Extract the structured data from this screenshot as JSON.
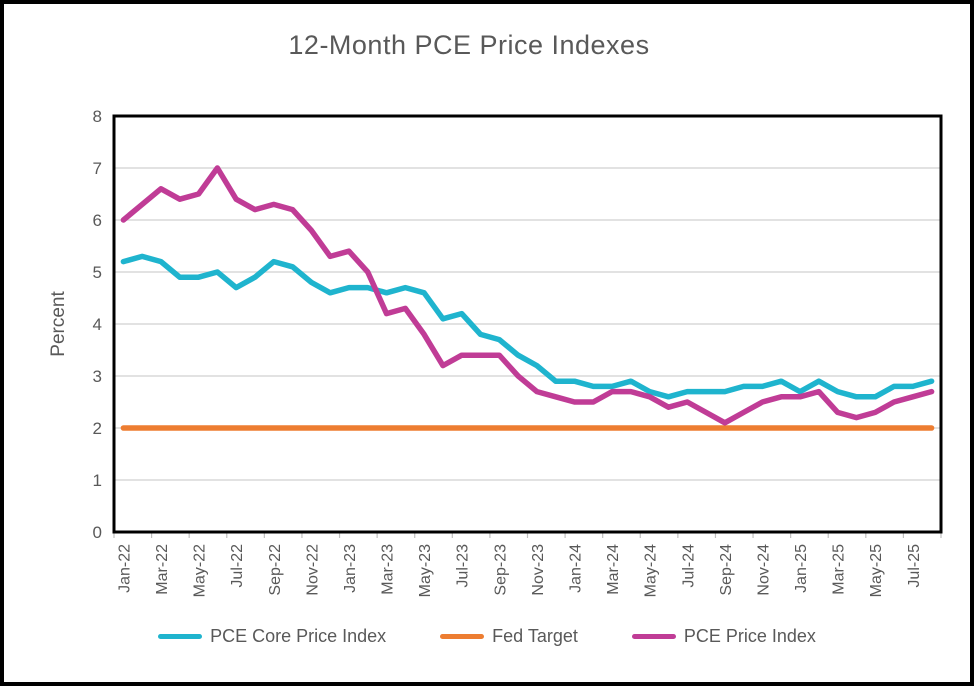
{
  "chart_data": {
    "type": "line",
    "title": "12-Month PCE Price Indexes",
    "ylabel": "Percent",
    "ylim": [
      0,
      8
    ],
    "ytick_step": 1,
    "x_label_every": 2,
    "grid": "horizontal",
    "legend_position": "bottom",
    "text_color": "#595959",
    "gridline_color": "#D9D9D9",
    "tick_color": "#BFBFBF",
    "axis_border_color": "#000000",
    "categories": [
      "Jan-22",
      "Feb-22",
      "Mar-22",
      "Apr-22",
      "May-22",
      "Jun-22",
      "Jul-22",
      "Aug-22",
      "Sep-22",
      "Oct-22",
      "Nov-22",
      "Dec-22",
      "Jan-23",
      "Feb-23",
      "Mar-23",
      "Apr-23",
      "May-23",
      "Jun-23",
      "Jul-23",
      "Aug-23",
      "Sep-23",
      "Oct-23",
      "Nov-23",
      "Dec-23",
      "Jan-24",
      "Feb-24",
      "Mar-24",
      "Apr-24",
      "May-24",
      "Jun-24",
      "Jul-24",
      "Aug-24",
      "Sep-24",
      "Oct-24",
      "Nov-24",
      "Dec-24",
      "Jan-25",
      "Feb-25",
      "Mar-25",
      "Apr-25",
      "May-25",
      "Jun-25",
      "Jul-25",
      "Aug-25"
    ],
    "series": [
      {
        "name": "PCE Core Price Index",
        "color": "#1FB4CE",
        "values": [
          5.2,
          5.3,
          5.2,
          4.9,
          4.9,
          5.0,
          4.7,
          4.9,
          5.2,
          5.1,
          4.8,
          4.6,
          4.7,
          4.7,
          4.6,
          4.7,
          4.6,
          4.1,
          4.2,
          3.8,
          3.7,
          3.4,
          3.2,
          2.9,
          2.9,
          2.8,
          2.8,
          2.9,
          2.7,
          2.6,
          2.7,
          2.7,
          2.7,
          2.8,
          2.8,
          2.9,
          2.7,
          2.9,
          2.7,
          2.6,
          2.6,
          2.8,
          2.8,
          2.9
        ]
      },
      {
        "name": "Fed Target",
        "color": "#ED7D31",
        "values": [
          2.0,
          2.0,
          2.0,
          2.0,
          2.0,
          2.0,
          2.0,
          2.0,
          2.0,
          2.0,
          2.0,
          2.0,
          2.0,
          2.0,
          2.0,
          2.0,
          2.0,
          2.0,
          2.0,
          2.0,
          2.0,
          2.0,
          2.0,
          2.0,
          2.0,
          2.0,
          2.0,
          2.0,
          2.0,
          2.0,
          2.0,
          2.0,
          2.0,
          2.0,
          2.0,
          2.0,
          2.0,
          2.0,
          2.0,
          2.0,
          2.0,
          2.0,
          2.0,
          2.0
        ]
      },
      {
        "name": "PCE Price Index",
        "color": "#C03C96",
        "values": [
          6.0,
          6.3,
          6.6,
          6.4,
          6.5,
          7.0,
          6.4,
          6.2,
          6.3,
          6.2,
          5.8,
          5.3,
          5.4,
          5.0,
          4.2,
          4.3,
          3.8,
          3.2,
          3.4,
          3.4,
          3.4,
          3.0,
          2.7,
          2.6,
          2.5,
          2.5,
          2.7,
          2.7,
          2.6,
          2.4,
          2.5,
          2.3,
          2.1,
          2.3,
          2.5,
          2.6,
          2.6,
          2.7,
          2.3,
          2.2,
          2.3,
          2.5,
          2.6,
          2.7
        ]
      }
    ]
  }
}
